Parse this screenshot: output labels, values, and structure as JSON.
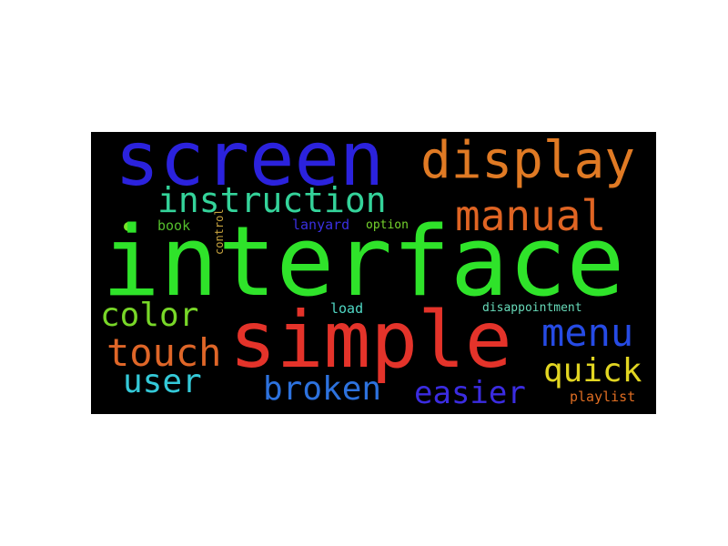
{
  "wordcloud": {
    "background": "#000000",
    "words": [
      {
        "id": "screen",
        "text": "screen",
        "color": "#2b22dd"
      },
      {
        "id": "display",
        "text": "display",
        "color": "#e07a24"
      },
      {
        "id": "instruction",
        "text": "instruction",
        "color": "#34d39a"
      },
      {
        "id": "manual",
        "text": "manual",
        "color": "#df6423"
      },
      {
        "id": "book",
        "text": "book",
        "color": "#55bf2d"
      },
      {
        "id": "lanyard",
        "text": "lanyard",
        "color": "#3a2fe0"
      },
      {
        "id": "option",
        "text": "option",
        "color": "#76d52d"
      },
      {
        "id": "interface",
        "text": "interface",
        "color": "#2fe32a"
      },
      {
        "id": "control",
        "text": "control",
        "color": "#c8a43f"
      },
      {
        "id": "load",
        "text": "load",
        "color": "#50d8c5"
      },
      {
        "id": "disappointment",
        "text": "disappointment",
        "color": "#67d9b8"
      },
      {
        "id": "color",
        "text": "color",
        "color": "#78d728"
      },
      {
        "id": "simple",
        "text": "simple",
        "color": "#e4332a"
      },
      {
        "id": "menu",
        "text": "menu",
        "color": "#264be4"
      },
      {
        "id": "touch",
        "text": "touch",
        "color": "#df6628"
      },
      {
        "id": "quick",
        "text": "quick",
        "color": "#e1d522"
      },
      {
        "id": "user",
        "text": "user",
        "color": "#34c9d8"
      },
      {
        "id": "broken",
        "text": "broken",
        "color": "#2d72de"
      },
      {
        "id": "easier",
        "text": "easier",
        "color": "#3b2ce1"
      },
      {
        "id": "playlist",
        "text": "playlist",
        "color": "#df6d22"
      }
    ],
    "dot_color": "#76e328"
  }
}
